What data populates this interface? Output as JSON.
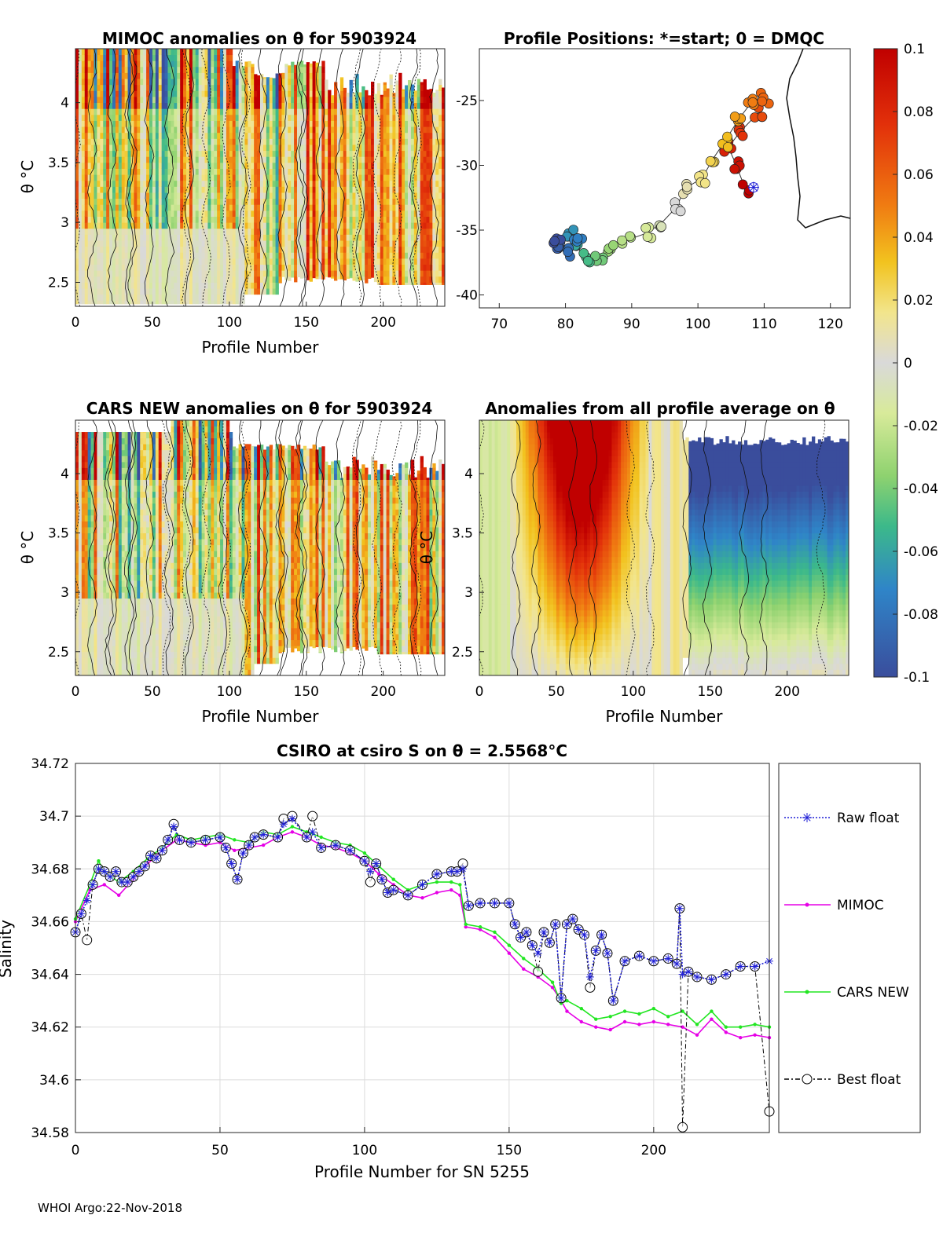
{
  "footer": "WHOI Argo:22-Nov-2018",
  "colors": {
    "raw_float": "#1f1fd6",
    "mimoc": "#e600e6",
    "cars_new": "#22e622",
    "best_float": "#000000",
    "axis": "#262626",
    "grid": "#dcdcdc",
    "nodata": "#d9d9d9"
  },
  "colorbar": {
    "min": -0.1,
    "max": 0.1,
    "ticks": [
      "0.1",
      "0.08",
      "0.06",
      "0.04",
      "0.02",
      "0",
      "-0.02",
      "-0.04",
      "-0.06",
      "-0.08",
      "-0.1"
    ],
    "colormap": "parula-like diverging: blue-teal-green-light yellow-grey-yellow-orange-red"
  },
  "chart_data": [
    {
      "id": "mimoc",
      "type": "heatmap",
      "title": "MIMOC anomalies on θ  for 5903924",
      "xlabel": "Profile Number",
      "ylabel": "θ °C",
      "xlim": [
        0,
        240
      ],
      "ylim": [
        2.3,
        4.45
      ],
      "xticks": [
        "0",
        "50",
        "100",
        "150",
        "200"
      ],
      "yticks": [
        "4",
        "3.5",
        "3",
        "2.5"
      ]
    },
    {
      "id": "positions",
      "type": "scatter",
      "title": "Profile Positions: *=start; 0 = DMQC",
      "xlim": [
        67,
        123
      ],
      "ylim": [
        -41,
        -21
      ],
      "xticks": [
        "70",
        "80",
        "90",
        "100",
        "110",
        "120"
      ],
      "yticks": [
        "-25",
        "-30",
        "-35",
        "-40"
      ],
      "track": [
        {
          "n": 0,
          "lon": 107.2,
          "lat": -31.9
        },
        {
          "n": 10,
          "lon": 105.8,
          "lat": -30.0
        },
        {
          "n": 20,
          "lon": 104.6,
          "lat": -28.6
        },
        {
          "n": 30,
          "lon": 106.4,
          "lat": -27.4
        },
        {
          "n": 40,
          "lon": 109.2,
          "lat": -25.9
        },
        {
          "n": 50,
          "lon": 110.0,
          "lat": -24.8
        },
        {
          "n": 60,
          "lon": 108.0,
          "lat": -25.2
        },
        {
          "n": 70,
          "lon": 106.2,
          "lat": -26.4
        },
        {
          "n": 80,
          "lon": 104.0,
          "lat": -28.2
        },
        {
          "n": 90,
          "lon": 102.4,
          "lat": -29.4
        },
        {
          "n": 100,
          "lon": 100.6,
          "lat": -31.0
        },
        {
          "n": 110,
          "lon": 98.0,
          "lat": -31.8
        },
        {
          "n": 120,
          "lon": 96.8,
          "lat": -33.2
        },
        {
          "n": 130,
          "lon": 94.6,
          "lat": -34.4
        },
        {
          "n": 140,
          "lon": 92.4,
          "lat": -35.2
        },
        {
          "n": 150,
          "lon": 89.2,
          "lat": -35.8
        },
        {
          "n": 160,
          "lon": 87.0,
          "lat": -36.4
        },
        {
          "n": 170,
          "lon": 85.0,
          "lat": -37.0
        },
        {
          "n": 180,
          "lon": 83.0,
          "lat": -37.2
        },
        {
          "n": 190,
          "lon": 81.2,
          "lat": -35.8
        },
        {
          "n": 200,
          "lon": 80.6,
          "lat": -35.2
        },
        {
          "n": 210,
          "lon": 81.8,
          "lat": -36.0
        },
        {
          "n": 220,
          "lon": 80.0,
          "lat": -36.6
        },
        {
          "n": 230,
          "lon": 79.0,
          "lat": -36.2
        },
        {
          "n": 240,
          "lon": 78.6,
          "lat": -36.0
        }
      ]
    },
    {
      "id": "cars",
      "type": "heatmap",
      "title": "CARS NEW anomalies on θ for 5903924",
      "xlabel": "Profile Number",
      "ylabel": "θ °C",
      "xlim": [
        0,
        240
      ],
      "ylim": [
        2.3,
        4.45
      ],
      "xticks": [
        "0",
        "50",
        "100",
        "150",
        "200"
      ],
      "yticks": [
        "4",
        "3.5",
        "3",
        "2.5"
      ]
    },
    {
      "id": "allavg",
      "type": "heatmap",
      "title": "Anomalies from all profile average on θ",
      "xlabel": "Profile Number",
      "ylabel": "θ °C",
      "xlim": [
        0,
        240
      ],
      "ylim": [
        2.3,
        4.45
      ],
      "xticks": [
        "0",
        "50",
        "100",
        "150",
        "200"
      ],
      "yticks": [
        "4",
        "3.5",
        "3",
        "2.5"
      ]
    },
    {
      "id": "salinity",
      "type": "line",
      "title": "CSIRO at csiro S on θ = 2.5568°C",
      "xlabel": "Profile Number for SN 5255",
      "ylabel": "Salinity",
      "xlim": [
        0,
        240
      ],
      "ylim": [
        34.58,
        34.72
      ],
      "xticks": [
        "0",
        "50",
        "100",
        "150",
        "200"
      ],
      "yticks": [
        "34.72",
        "34.7",
        "34.68",
        "34.66",
        "34.64",
        "34.62",
        "34.6",
        "34.58"
      ],
      "legend": [
        "Raw float",
        "MIMOC",
        "CARS NEW",
        "Best float"
      ],
      "series": [
        {
          "name": "Raw float",
          "x": [
            0,
            2,
            4,
            6,
            8,
            10,
            12,
            14,
            16,
            18,
            20,
            22,
            24,
            26,
            28,
            30,
            32,
            34,
            36,
            40,
            45,
            50,
            52,
            54,
            56,
            58,
            60,
            62,
            65,
            70,
            72,
            75,
            80,
            82,
            85,
            90,
            95,
            100,
            102,
            104,
            106,
            108,
            110,
            115,
            120,
            125,
            130,
            132,
            134,
            136,
            140,
            145,
            150,
            152,
            154,
            156,
            158,
            160,
            162,
            164,
            166,
            168,
            170,
            172,
            174,
            176,
            178,
            180,
            182,
            184,
            186,
            190,
            195,
            200,
            205,
            208,
            209,
            210,
            212,
            215,
            220,
            225,
            230,
            235,
            240
          ],
          "values": [
            34.656,
            34.663,
            34.668,
            34.674,
            34.68,
            34.679,
            34.677,
            34.679,
            34.675,
            34.675,
            34.677,
            34.679,
            34.681,
            34.685,
            34.684,
            34.687,
            34.691,
            34.696,
            34.691,
            34.69,
            34.691,
            34.692,
            34.688,
            34.682,
            34.676,
            34.686,
            34.689,
            34.692,
            34.693,
            34.692,
            34.697,
            34.699,
            34.692,
            34.694,
            34.688,
            34.689,
            34.687,
            34.683,
            34.679,
            34.682,
            34.676,
            34.671,
            34.672,
            34.67,
            34.674,
            34.678,
            34.679,
            34.679,
            34.68,
            34.666,
            34.667,
            34.667,
            34.667,
            34.659,
            34.654,
            34.656,
            34.651,
            34.648,
            34.656,
            34.652,
            34.659,
            34.631,
            34.659,
            34.661,
            34.657,
            34.655,
            34.639,
            34.649,
            34.655,
            34.648,
            34.63,
            34.645,
            34.647,
            34.645,
            34.646,
            34.644,
            34.665,
            34.64,
            34.641,
            34.639,
            34.638,
            34.64,
            34.643,
            34.643,
            34.645
          ]
        },
        {
          "name": "MIMOC",
          "x": [
            0,
            5,
            10,
            15,
            20,
            25,
            30,
            35,
            40,
            45,
            50,
            55,
            60,
            65,
            70,
            75,
            80,
            85,
            90,
            95,
            100,
            105,
            110,
            115,
            120,
            125,
            130,
            133,
            135,
            140,
            145,
            150,
            155,
            160,
            165,
            168,
            170,
            175,
            180,
            185,
            190,
            195,
            200,
            205,
            210,
            215,
            220,
            225,
            230,
            235,
            240
          ],
          "values": [
            34.66,
            34.672,
            34.674,
            34.67,
            34.676,
            34.682,
            34.687,
            34.691,
            34.69,
            34.689,
            34.69,
            34.687,
            34.688,
            34.689,
            34.692,
            34.694,
            34.692,
            34.689,
            34.688,
            34.686,
            34.683,
            34.678,
            34.674,
            34.67,
            34.669,
            34.671,
            34.672,
            34.67,
            34.658,
            34.657,
            34.654,
            34.648,
            34.642,
            34.639,
            34.635,
            34.63,
            34.626,
            34.622,
            34.62,
            34.619,
            34.622,
            34.621,
            34.622,
            34.621,
            34.62,
            34.617,
            34.623,
            34.618,
            34.616,
            34.617,
            34.616
          ]
        },
        {
          "name": "CARS NEW",
          "x": [
            0,
            5,
            8,
            10,
            15,
            20,
            25,
            30,
            35,
            40,
            45,
            50,
            55,
            60,
            65,
            70,
            75,
            80,
            85,
            90,
            95,
            100,
            105,
            110,
            115,
            120,
            125,
            130,
            133,
            135,
            140,
            145,
            150,
            155,
            160,
            165,
            168,
            170,
            175,
            180,
            185,
            190,
            195,
            200,
            205,
            210,
            215,
            220,
            225,
            230,
            235,
            240
          ],
          "values": [
            34.661,
            34.674,
            34.683,
            34.679,
            34.675,
            34.679,
            34.684,
            34.688,
            34.693,
            34.691,
            34.692,
            34.693,
            34.691,
            34.69,
            34.694,
            34.693,
            34.696,
            34.694,
            34.692,
            34.69,
            34.689,
            34.686,
            34.681,
            34.676,
            34.672,
            34.674,
            34.675,
            34.675,
            34.674,
            34.659,
            34.658,
            34.656,
            34.651,
            34.646,
            34.642,
            34.637,
            34.629,
            34.63,
            34.627,
            34.623,
            34.624,
            34.626,
            34.625,
            34.627,
            34.624,
            34.626,
            34.621,
            34.626,
            34.62,
            34.62,
            34.621,
            34.62
          ]
        },
        {
          "name": "Best float",
          "x": [
            0,
            2,
            4,
            6,
            8,
            10,
            12,
            14,
            16,
            18,
            20,
            22,
            24,
            26,
            28,
            30,
            32,
            34,
            36,
            40,
            45,
            50,
            52,
            54,
            56,
            58,
            60,
            62,
            65,
            70,
            72,
            75,
            80,
            82,
            85,
            90,
            95,
            100,
            102,
            104,
            106,
            108,
            110,
            115,
            120,
            125,
            130,
            132,
            134,
            136,
            140,
            145,
            150,
            152,
            154,
            156,
            158,
            160,
            162,
            164,
            166,
            168,
            170,
            172,
            174,
            176,
            178,
            180,
            182,
            184,
            186,
            190,
            195,
            200,
            205,
            208,
            209,
            210,
            212,
            215,
            220,
            225,
            230,
            235,
            240
          ],
          "values": [
            34.656,
            34.663,
            34.653,
            34.674,
            34.68,
            34.679,
            34.677,
            34.679,
            34.675,
            34.675,
            34.677,
            34.679,
            34.681,
            34.685,
            34.684,
            34.687,
            34.691,
            34.697,
            34.691,
            34.69,
            34.691,
            34.692,
            34.688,
            34.682,
            34.676,
            34.686,
            34.689,
            34.692,
            34.693,
            34.692,
            34.699,
            34.7,
            34.692,
            34.7,
            34.688,
            34.689,
            34.687,
            34.683,
            34.675,
            34.682,
            34.676,
            34.671,
            34.672,
            34.67,
            34.674,
            34.678,
            34.679,
            34.679,
            34.682,
            34.666,
            34.667,
            34.667,
            34.667,
            34.659,
            34.654,
            34.656,
            34.651,
            34.641,
            34.656,
            34.652,
            34.659,
            34.631,
            34.659,
            34.661,
            34.657,
            34.655,
            34.635,
            34.649,
            34.655,
            34.648,
            34.63,
            34.645,
            34.647,
            34.645,
            34.646,
            34.644,
            34.665,
            34.582,
            34.641,
            34.639,
            34.638,
            34.64,
            34.643,
            34.643,
            34.588
          ]
        }
      ]
    }
  ]
}
